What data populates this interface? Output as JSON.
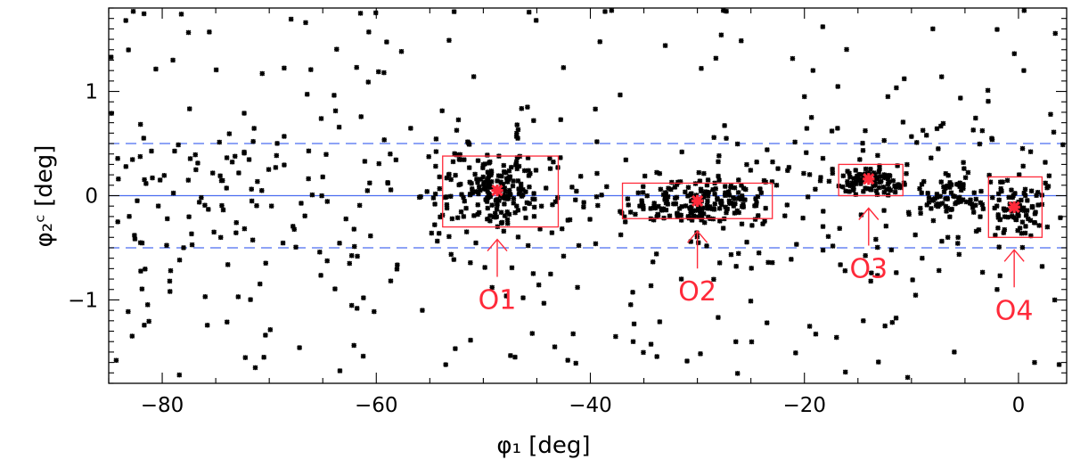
{
  "chart_data": {
    "type": "scatter",
    "xlabel": "φ₁ [deg]",
    "ylabel": "φ₂ᶜ [deg]",
    "xlim": [
      -85,
      4.5
    ],
    "ylim": [
      -1.8,
      1.8
    ],
    "x_ticks": [
      -80,
      -60,
      -40,
      -20,
      0
    ],
    "x_tick_labels": [
      "−80",
      "−60",
      "−40",
      "−20",
      "0"
    ],
    "y_ticks": [
      -1,
      0,
      1
    ],
    "y_tick_labels": [
      "−1",
      "0",
      "1"
    ],
    "grid": false,
    "point_color": "#000000",
    "highlight_color": "#ff2a3a",
    "line_color": "#4a6cf0",
    "reference_lines": [
      {
        "y": 0.5,
        "style": "dashed"
      },
      {
        "y": 0.0,
        "style": "solid"
      },
      {
        "y": -0.5,
        "style": "dashed"
      }
    ],
    "regions": [
      {
        "name": "O1",
        "x": [
          -53.8,
          -43.0
        ],
        "y": [
          -0.3,
          0.38
        ],
        "center": [
          -48.7,
          0.05
        ]
      },
      {
        "name": "O2",
        "x": [
          -37.0,
          -23.0
        ],
        "y": [
          -0.22,
          0.12
        ],
        "center": [
          -30.0,
          -0.05
        ]
      },
      {
        "name": "O3",
        "x": [
          -16.8,
          -10.8
        ],
        "y": [
          0.0,
          0.3
        ],
        "center": [
          -14.0,
          0.16
        ]
      },
      {
        "name": "O4",
        "x": [
          -2.8,
          2.2
        ],
        "y": [
          -0.4,
          0.18
        ],
        "center": [
          -0.4,
          -0.11
        ]
      }
    ],
    "clusters": [
      {
        "x": [
          -55,
          -43
        ],
        "y": [
          -0.35,
          0.45
        ],
        "n": 170
      },
      {
        "x": [
          -37,
          -23
        ],
        "y": [
          -0.3,
          0.18
        ],
        "n": 170
      },
      {
        "x": [
          -17,
          -10
        ],
        "y": [
          -0.05,
          0.35
        ],
        "n": 85
      },
      {
        "x": [
          -10,
          -2
        ],
        "y": [
          -0.3,
          0.25
        ],
        "n": 70
      },
      {
        "x": [
          -3,
          2.5
        ],
        "y": [
          -0.45,
          0.2
        ],
        "n": 70
      }
    ],
    "sample_points": [
      [
        -83.4,
        1.68
      ],
      [
        -79.0,
        1.3
      ],
      [
        -75.6,
        1.57
      ],
      [
        -66.6,
        1.66
      ],
      [
        -60.7,
        1.57
      ],
      [
        -53.2,
        1.49
      ],
      [
        -33.0,
        1.44
      ],
      [
        -8.0,
        1.6
      ],
      [
        -84.3,
        -1.58
      ],
      [
        -78.4,
        -1.72
      ],
      [
        -72.9,
        -0.97
      ],
      [
        -70.5,
        -1.55
      ],
      [
        -63.4,
        -1.68
      ],
      [
        -61.2,
        -0.98
      ],
      [
        -17.0,
        -1.36
      ],
      [
        -6.0,
        -1.5
      ],
      [
        1.5,
        -1.6
      ],
      [
        3.8,
        -1.62
      ],
      [
        -71.5,
        0.52
      ],
      [
        -65.0,
        0.18
      ],
      [
        -62.5,
        -0.65
      ],
      [
        -58.7,
        0.4
      ],
      [
        -79.3,
        -0.82
      ],
      [
        -80.2,
        0.15
      ],
      [
        -55.7,
        -1.1
      ],
      [
        -41.2,
        -0.88
      ],
      [
        -36.0,
        -1.4
      ],
      [
        -23.5,
        -1.22
      ],
      [
        -20.0,
        0.95
      ],
      [
        -16.2,
        -0.72
      ],
      [
        -12.2,
        0.95
      ],
      [
        -6.6,
        -0.4
      ],
      [
        -2.5,
        0.55
      ],
      [
        0.5,
        1.2
      ],
      [
        3.0,
        0.78
      ],
      [
        2.7,
        -0.3
      ],
      [
        -27.3,
        0.55
      ],
      [
        -31.5,
        -0.8
      ],
      [
        -45.3,
        0.72
      ],
      [
        -42.5,
        -0.58
      ],
      [
        -13.8,
        -0.82
      ],
      [
        -14.5,
        -1.2
      ],
      [
        -9.0,
        -0.6
      ],
      [
        -2.0,
        -0.9
      ],
      [
        -7.5,
        0.45
      ]
    ]
  },
  "annotations": {
    "labels": [
      "O1",
      "O2",
      "O3",
      "O4"
    ]
  }
}
